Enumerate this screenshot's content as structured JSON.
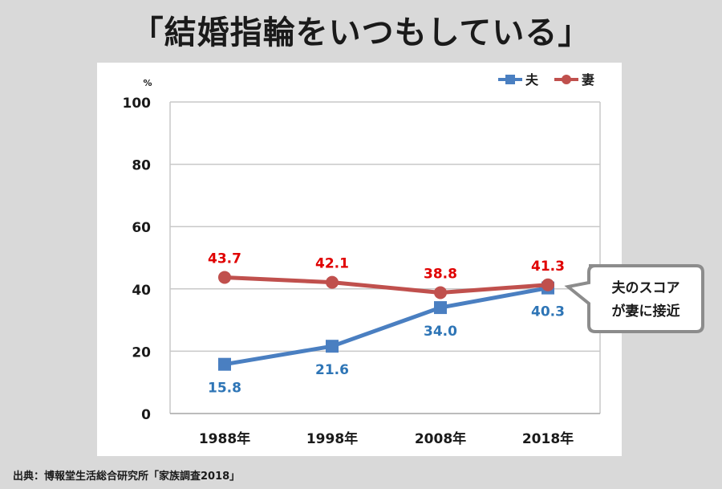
{
  "title": "「結婚指輪をいつもしている」",
  "source": "出典：博報堂生活総合研究所「家族調査2018」",
  "callout": {
    "line1": "夫のスコア",
    "line2": "が妻に接近"
  },
  "chart_data": {
    "type": "line",
    "categories": [
      "1988年",
      "1998年",
      "2008年",
      "2018年"
    ],
    "ylabel": "%",
    "ylim": [
      0,
      100
    ],
    "yticks": [
      0,
      20,
      40,
      60,
      80,
      100
    ],
    "grid": true,
    "legend": "top-right",
    "series": [
      {
        "name": "夫",
        "values": [
          15.8,
          21.6,
          34.0,
          40.3
        ],
        "color": "#4a7fc1",
        "marker": "square",
        "label_color": "#2e75b6",
        "label_position": "below"
      },
      {
        "name": "妻",
        "values": [
          43.7,
          42.1,
          38.8,
          41.3
        ],
        "color": "#c0504d",
        "marker": "circle",
        "label_color": "#e00000",
        "label_position": "above"
      }
    ]
  }
}
